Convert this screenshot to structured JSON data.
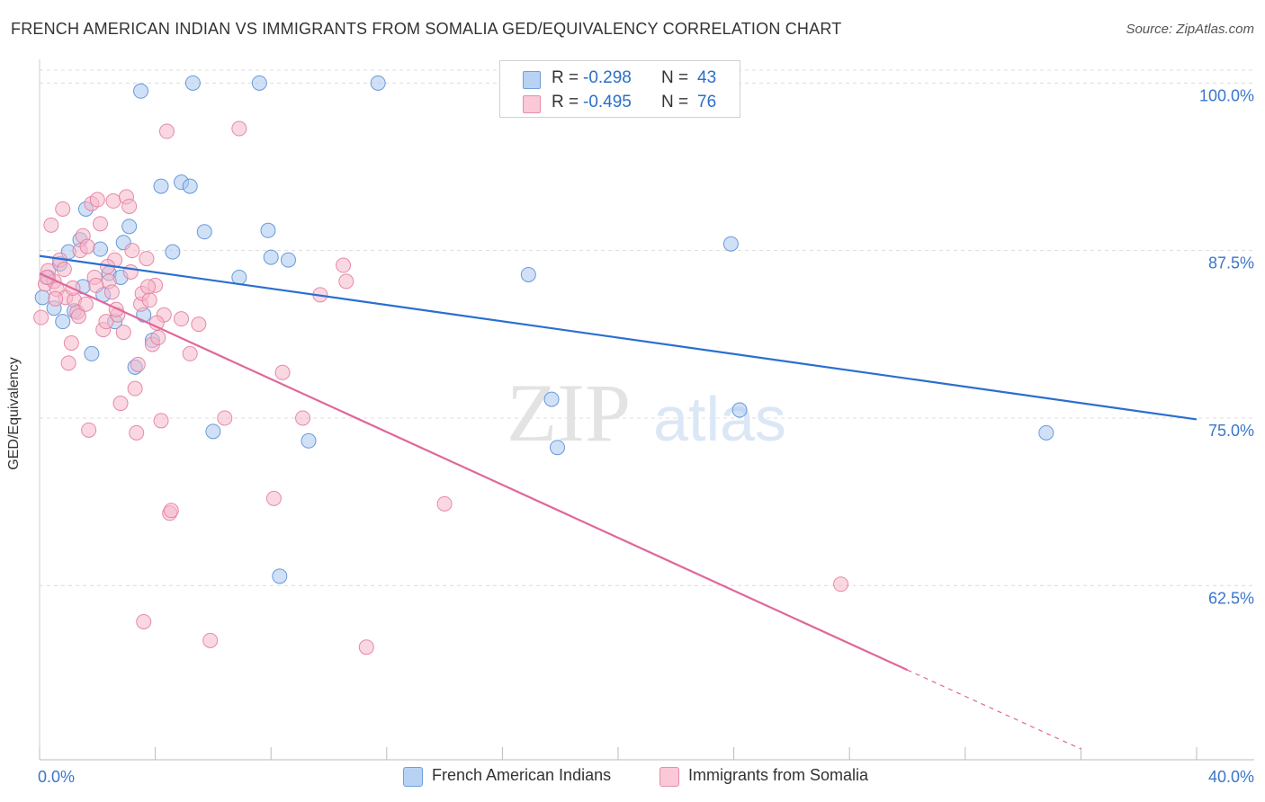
{
  "title": "FRENCH AMERICAN INDIAN VS IMMIGRANTS FROM SOMALIA GED/EQUIVALENCY CORRELATION CHART",
  "source": "Source: ZipAtlas.com",
  "watermark": {
    "zip": "ZIP",
    "atlas": "atlas"
  },
  "colors": {
    "blue_fill": "#a9c9f0",
    "blue_stroke": "#5a8fd6",
    "blue_line": "#2a6fd0",
    "pink_fill": "#f6b8ca",
    "pink_stroke": "#e37ea0",
    "pink_line": "#e0679a",
    "axis_text": "#3a76cc",
    "grid": "#dcdcdc"
  },
  "legend": {
    "rows": [
      {
        "r_label": "R =",
        "r_value": "-0.298",
        "n_label": "N =",
        "n_value": "43"
      },
      {
        "r_label": "R =",
        "r_value": "-0.495",
        "n_label": "N =",
        "n_value": "76"
      }
    ]
  },
  "chart_data": {
    "type": "scatter",
    "title": "FRENCH AMERICAN INDIAN VS IMMIGRANTS FROM SOMALIA GED/EQUIVALENCY CORRELATION CHART",
    "xlabel": "",
    "ylabel": "GED/Equivalency",
    "xlim": [
      0,
      40
    ],
    "ylim": [
      49.5,
      101.5
    ],
    "x_tick_labels": [
      {
        "value": 0,
        "label": "0.0%"
      },
      {
        "value": 40,
        "label": "40.0%"
      }
    ],
    "x_minor_ticks": [
      0,
      4,
      8,
      12,
      16,
      20,
      24,
      28,
      32,
      36,
      40
    ],
    "y_ticks": [
      {
        "value": 100,
        "label": "100.0%"
      },
      {
        "value": 87.5,
        "label": "87.5%"
      },
      {
        "value": 75,
        "label": "75.0%"
      },
      {
        "value": 62.5,
        "label": "62.5%"
      }
    ],
    "grid": true,
    "series": [
      {
        "name": "French American Indians",
        "color": "blue",
        "trend": {
          "x0": 0,
          "y0": 87.1,
          "x1": 40,
          "y1": 74.9
        },
        "points": [
          [
            0.1,
            84.0
          ],
          [
            0.3,
            85.5
          ],
          [
            0.5,
            83.2
          ],
          [
            0.7,
            86.5
          ],
          [
            0.8,
            82.2
          ],
          [
            1.0,
            87.4
          ],
          [
            1.2,
            83.0
          ],
          [
            1.4,
            88.3
          ],
          [
            1.5,
            84.8
          ],
          [
            1.6,
            90.6
          ],
          [
            1.8,
            79.8
          ],
          [
            2.1,
            87.6
          ],
          [
            2.2,
            84.2
          ],
          [
            2.4,
            85.8
          ],
          [
            2.6,
            82.2
          ],
          [
            2.8,
            85.5
          ],
          [
            2.9,
            88.1
          ],
          [
            3.1,
            89.3
          ],
          [
            3.3,
            78.8
          ],
          [
            3.5,
            99.4
          ],
          [
            3.6,
            82.7
          ],
          [
            3.9,
            80.8
          ],
          [
            4.2,
            92.3
          ],
          [
            4.6,
            87.4
          ],
          [
            4.9,
            92.6
          ],
          [
            5.2,
            92.3
          ],
          [
            5.3,
            100.0
          ],
          [
            5.7,
            88.9
          ],
          [
            6.0,
            74.0
          ],
          [
            6.9,
            85.5
          ],
          [
            7.6,
            100.0
          ],
          [
            7.9,
            89.0
          ],
          [
            8.0,
            87.0
          ],
          [
            8.3,
            63.2
          ],
          [
            8.6,
            86.8
          ],
          [
            9.3,
            73.3
          ],
          [
            11.7,
            100.0
          ],
          [
            16.9,
            85.7
          ],
          [
            17.7,
            76.4
          ],
          [
            17.9,
            72.8
          ],
          [
            23.9,
            88.0
          ],
          [
            24.2,
            75.6
          ],
          [
            34.8,
            73.9
          ]
        ]
      },
      {
        "name": "Immigrants from Somalia",
        "color": "pink",
        "trend": {
          "x0": 0,
          "y0": 85.8,
          "x1": 30.0,
          "y1": 56.2,
          "dash_x1": 36.0,
          "dash_y1": 50.3
        },
        "points": [
          [
            0.05,
            82.5
          ],
          [
            0.2,
            85.0
          ],
          [
            0.3,
            86.0
          ],
          [
            0.4,
            89.4
          ],
          [
            0.5,
            85.2
          ],
          [
            0.6,
            84.6
          ],
          [
            0.7,
            86.8
          ],
          [
            0.8,
            90.6
          ],
          [
            0.9,
            84.0
          ],
          [
            1.0,
            79.1
          ],
          [
            1.1,
            80.6
          ],
          [
            1.2,
            83.8
          ],
          [
            1.3,
            82.9
          ],
          [
            1.4,
            87.5
          ],
          [
            1.5,
            88.6
          ],
          [
            1.6,
            83.5
          ],
          [
            1.7,
            74.1
          ],
          [
            1.8,
            91.0
          ],
          [
            1.9,
            85.5
          ],
          [
            2.0,
            91.3
          ],
          [
            2.1,
            89.5
          ],
          [
            2.2,
            81.6
          ],
          [
            2.3,
            82.2
          ],
          [
            2.4,
            85.2
          ],
          [
            2.5,
            84.4
          ],
          [
            2.55,
            91.2
          ],
          [
            2.6,
            86.8
          ],
          [
            2.7,
            82.7
          ],
          [
            2.8,
            76.1
          ],
          [
            2.9,
            81.4
          ],
          [
            3.0,
            91.5
          ],
          [
            3.1,
            90.8
          ],
          [
            3.2,
            87.5
          ],
          [
            3.3,
            77.2
          ],
          [
            3.35,
            73.9
          ],
          [
            3.4,
            79.0
          ],
          [
            3.5,
            83.5
          ],
          [
            3.55,
            84.3
          ],
          [
            3.6,
            59.8
          ],
          [
            3.7,
            86.9
          ],
          [
            3.8,
            83.8
          ],
          [
            3.9,
            80.5
          ],
          [
            4.0,
            84.9
          ],
          [
            4.1,
            81.0
          ],
          [
            4.2,
            74.8
          ],
          [
            4.3,
            82.7
          ],
          [
            4.4,
            96.4
          ],
          [
            4.5,
            67.9
          ],
          [
            4.55,
            68.1
          ],
          [
            4.9,
            82.4
          ],
          [
            5.2,
            79.8
          ],
          [
            5.5,
            82.0
          ],
          [
            5.9,
            58.4
          ],
          [
            6.4,
            75.0
          ],
          [
            6.9,
            96.6
          ],
          [
            8.1,
            69.0
          ],
          [
            8.4,
            78.4
          ],
          [
            9.1,
            75.0
          ],
          [
            9.7,
            84.2
          ],
          [
            10.5,
            86.4
          ],
          [
            10.6,
            85.2
          ],
          [
            11.3,
            57.9
          ],
          [
            14.0,
            68.6
          ],
          [
            27.7,
            62.6
          ],
          [
            0.25,
            85.5
          ],
          [
            0.55,
            83.9
          ],
          [
            0.85,
            86.1
          ],
          [
            1.15,
            84.7
          ],
          [
            1.35,
            82.6
          ],
          [
            1.65,
            87.8
          ],
          [
            1.95,
            84.9
          ],
          [
            2.35,
            86.3
          ],
          [
            2.65,
            83.1
          ],
          [
            3.15,
            85.9
          ],
          [
            3.75,
            84.8
          ],
          [
            4.05,
            82.1
          ]
        ]
      }
    ]
  }
}
